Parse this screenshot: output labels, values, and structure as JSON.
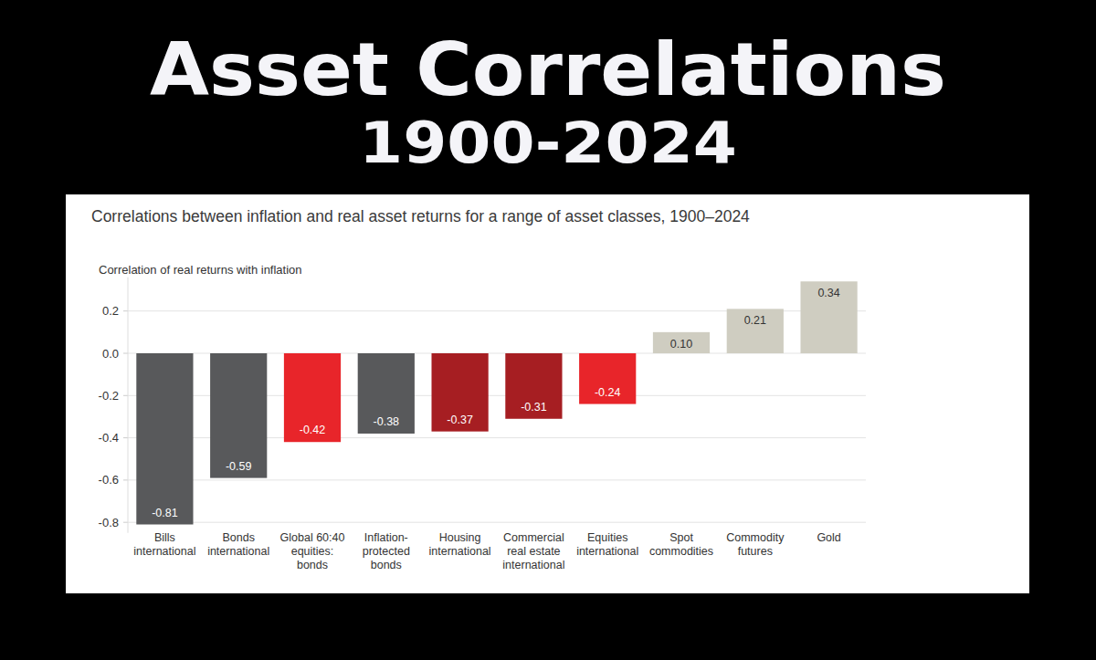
{
  "header": {
    "title": "Asset Correlations",
    "subtitle": "1900-2024"
  },
  "chart_data": {
    "type": "bar",
    "title": "Correlations between inflation and real asset returns for a range of asset classes, 1900–2024",
    "y_label": "Correlation of real returns with inflation",
    "categories": [
      "Bills\ninternational",
      "Bonds\ninternational",
      "Global 60:40\nequities:\nbonds",
      "Inflation-\nprotected\nbonds",
      "Housing\ninternational",
      "Commercial\nreal estate\ninternational",
      "Equities\ninternational",
      "Spot\ncommodities",
      "Commodity\nfutures",
      "Gold"
    ],
    "values": [
      -0.81,
      -0.59,
      -0.42,
      -0.38,
      -0.37,
      -0.31,
      -0.24,
      0.1,
      0.21,
      0.34
    ],
    "value_labels": [
      "-0.81",
      "-0.59",
      "-0.42",
      "-0.38",
      "-0.37",
      "-0.31",
      "-0.24",
      "0.10",
      "0.21",
      "0.34"
    ],
    "colors": [
      "#58595b",
      "#58595b",
      "#e8252a",
      "#58595b",
      "#a61e22",
      "#a61e22",
      "#e8252a",
      "#cfcdc1",
      "#cfcdc1",
      "#cfcdc1"
    ],
    "ylim": [
      -0.85,
      0.36
    ],
    "yticks": [
      -0.8,
      -0.6,
      -0.4,
      -0.2,
      {
        "value": 0,
        "label": "0.0"
      },
      0.2
    ],
    "grid": true,
    "data_labels": true
  }
}
